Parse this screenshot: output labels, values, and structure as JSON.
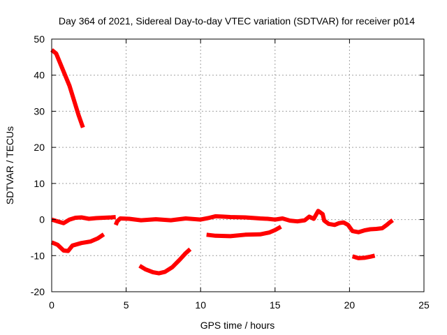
{
  "chart_data": {
    "type": "line",
    "title": "Day 364 of 2021, Sidereal Day-to-day VTEC variation (SDTVAR) for receiver p014",
    "xlabel": "GPS time / hours",
    "ylabel": "SDTVAR / TECUs",
    "xlim": [
      0,
      25
    ],
    "ylim": [
      -20,
      50
    ],
    "xticks": [
      0,
      5,
      10,
      15,
      20,
      25
    ],
    "yticks": [
      -20,
      -10,
      0,
      10,
      20,
      30,
      40,
      50
    ],
    "grid": true,
    "color": "#ff0000",
    "series": [
      {
        "name": "arc-1",
        "points": [
          [
            0,
            47
          ],
          [
            0.3,
            46
          ],
          [
            0.6,
            43
          ],
          [
            0.9,
            40
          ],
          [
            1.2,
            37
          ],
          [
            1.5,
            33
          ],
          [
            1.8,
            29
          ],
          [
            2.1,
            25.5
          ]
        ]
      },
      {
        "name": "arc-2",
        "points": [
          [
            0,
            0
          ],
          [
            0.4,
            -0.5
          ],
          [
            0.8,
            -1
          ],
          [
            1.2,
            0
          ],
          [
            1.6,
            0.5
          ],
          [
            2.0,
            0.6
          ],
          [
            2.5,
            0.2
          ],
          [
            3.0,
            0.4
          ],
          [
            3.5,
            0.5
          ],
          [
            4.0,
            0.6
          ],
          [
            4.3,
            0.7
          ]
        ]
      },
      {
        "name": "arc-3",
        "points": [
          [
            0,
            -6.3
          ],
          [
            0.4,
            -7
          ],
          [
            0.8,
            -8.6
          ],
          [
            1.1,
            -8.7
          ],
          [
            1.4,
            -7.2
          ],
          [
            2.0,
            -6.5
          ],
          [
            2.6,
            -6.1
          ],
          [
            3.1,
            -5.2
          ],
          [
            3.5,
            -4.1
          ]
        ]
      },
      {
        "name": "arc-4",
        "points": [
          [
            4.3,
            -1.5
          ],
          [
            4.4,
            -0.5
          ],
          [
            4.6,
            0.3
          ],
          [
            5.2,
            0.2
          ],
          [
            6,
            -0.2
          ],
          [
            7,
            0.1
          ],
          [
            8,
            -0.2
          ],
          [
            9,
            0.3
          ],
          [
            10,
            0
          ],
          [
            10.5,
            0.4
          ],
          [
            11,
            0.9
          ],
          [
            11.5,
            0.8
          ],
          [
            12,
            0.7
          ],
          [
            13,
            0.6
          ],
          [
            14,
            0.3
          ],
          [
            14.5,
            0.2
          ],
          [
            15,
            0
          ],
          [
            15.5,
            0.3
          ],
          [
            16,
            -0.3
          ],
          [
            16.5,
            -0.5
          ],
          [
            17,
            -0.2
          ],
          [
            17.3,
            0.8
          ],
          [
            17.6,
            0.2
          ],
          [
            17.9,
            2.4
          ],
          [
            18.2,
            1.5
          ],
          [
            18.3,
            -0.3
          ],
          [
            18.6,
            -1.2
          ],
          [
            19,
            -1.5
          ],
          [
            19.3,
            -1.0
          ],
          [
            19.6,
            -0.8
          ],
          [
            19.9,
            -1.5
          ],
          [
            20.2,
            -3.2
          ],
          [
            20.6,
            -3.5
          ],
          [
            21,
            -3.0
          ],
          [
            21.4,
            -2.7
          ],
          [
            21.8,
            -2.6
          ],
          [
            22.2,
            -2.4
          ],
          [
            22.5,
            -1.5
          ],
          [
            22.7,
            -0.8
          ],
          [
            22.9,
            -0.2
          ]
        ]
      },
      {
        "name": "arc-5",
        "points": [
          [
            5.9,
            -12.8
          ],
          [
            6.3,
            -13.8
          ],
          [
            6.8,
            -14.6
          ],
          [
            7.2,
            -14.9
          ],
          [
            7.6,
            -14.5
          ],
          [
            8.1,
            -13.2
          ],
          [
            8.6,
            -11.1
          ],
          [
            9.0,
            -9.3
          ],
          [
            9.3,
            -8.2
          ]
        ]
      },
      {
        "name": "arc-6",
        "points": [
          [
            10.4,
            -4.2
          ],
          [
            11,
            -4.5
          ],
          [
            12,
            -4.6
          ],
          [
            13,
            -4.2
          ],
          [
            14,
            -4.1
          ],
          [
            14.6,
            -3.6
          ],
          [
            15.0,
            -2.9
          ],
          [
            15.4,
            -2.0
          ]
        ]
      },
      {
        "name": "arc-7",
        "points": [
          [
            20.2,
            -10.2
          ],
          [
            20.6,
            -10.7
          ],
          [
            21.0,
            -10.6
          ],
          [
            21.4,
            -10.3
          ],
          [
            21.7,
            -10.0
          ]
        ]
      }
    ]
  }
}
